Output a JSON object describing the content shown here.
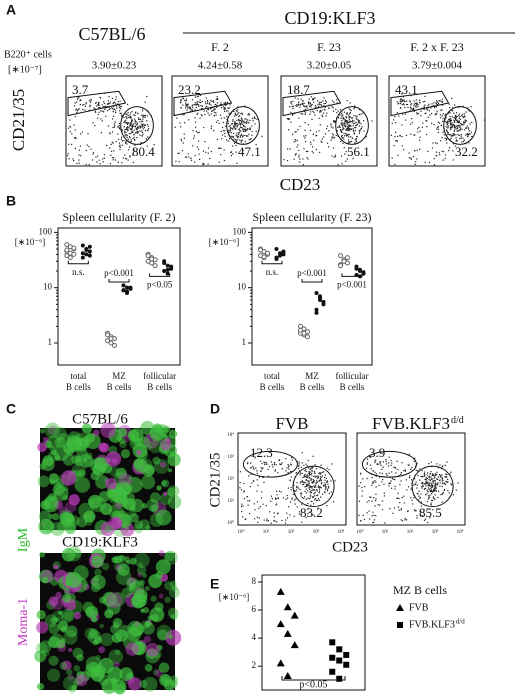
{
  "panel_labels": [
    "A",
    "B",
    "C",
    "D",
    "E"
  ],
  "panel_A": {
    "strain_wt": "C57BL/6",
    "strain_tg": "CD19:KLF3",
    "lines": [
      "F. 2",
      "F. 23",
      "F. 2 x F. 23"
    ],
    "count_label": "B220⁺ cells",
    "count_unit": "[∗10⁻⁷]",
    "counts": [
      "3.90±0.23",
      "4.24±0.58",
      "3.20±0.05",
      "3.79±0.004"
    ],
    "gate_mz": [
      3.7,
      23.2,
      18.7,
      43.1
    ],
    "gate_fo": [
      80.4,
      47.1,
      56.1,
      32.2
    ],
    "y_label": "CD21/35",
    "x_label": "CD23"
  },
  "panel_C": {
    "titles": [
      "C57BL/6",
      "CD19:KLF3"
    ],
    "stain_1": "IgM",
    "stain_2": "Moma-1"
  },
  "panel_D": {
    "titles": [
      "FVB",
      "FVB.KLF3"
    ],
    "title_sup": "d/d",
    "gate_mz": [
      12.3,
      3.9
    ],
    "gate_fo": [
      83.2,
      85.5
    ],
    "y_label": "CD21/35",
    "x_label": "CD23",
    "decades": [
      "10⁰",
      "10¹",
      "10²",
      "10³",
      "10⁴"
    ]
  },
  "chart_data": [
    {
      "type": "strip",
      "title": "Spleen cellularity (F. 2)",
      "y_label": "[∗10⁻⁶]",
      "log_y": true,
      "ylim": [
        0.4,
        120
      ],
      "yticks": [
        1,
        10,
        100
      ],
      "categories": [
        "total B cells",
        "MZ B cells",
        "follicular B cells"
      ],
      "series": [
        {
          "marker": "open-circle",
          "color": "#666666",
          "values": [
            [
              60,
              55,
              50,
              45,
              42,
              40,
              38,
              35,
              52,
              48
            ],
            [
              1.5,
              1.3,
              1.2,
              1.1,
              1.0,
              0.9,
              1.4,
              1.2
            ],
            [
              40,
              35,
              32,
              30,
              28,
              25,
              38,
              33
            ]
          ]
        },
        {
          "marker": "filled-circle",
          "color": "#111111",
          "values": [
            [
              58,
              50,
              45,
              42,
              40,
              38,
              35,
              48,
              55
            ],
            [
              11,
              10,
              9.5,
              9,
              8.5,
              10,
              9,
              8
            ],
            [
              30,
              25,
              22,
              20,
              18,
              24,
              28,
              21
            ]
          ]
        }
      ],
      "annotations": [
        "n.s.",
        "p<0.001",
        "p<0.05"
      ]
    },
    {
      "type": "strip",
      "title": "Spleen cellularity (F. 23)",
      "y_label": "[∗10⁻⁶]",
      "log_y": true,
      "ylim": [
        0.4,
        120
      ],
      "yticks": [
        1,
        10,
        100
      ],
      "categories": [
        "total B cells",
        "MZ B cells",
        "follicular B cells"
      ],
      "series": [
        {
          "marker": "open-circle",
          "color": "#666666",
          "values": [
            [
              50,
              45,
              40,
              38,
              35,
              42,
              48,
              36
            ],
            [
              2.0,
              1.8,
              1.6,
              1.5,
              1.4,
              1.3,
              1.7,
              1.5
            ],
            [
              38,
              32,
              28,
              26,
              30,
              35,
              25
            ]
          ]
        },
        {
          "marker": "filled-circle",
          "color": "#111111",
          "values": [
            [
              50,
              42,
              40,
              35,
              38,
              45,
              33
            ],
            [
              8,
              6,
              5,
              4,
              6.5,
              5.5,
              3.5,
              7
            ],
            [
              22,
              20,
              18,
              17,
              21,
              19,
              24,
              16
            ]
          ]
        }
      ],
      "annotations": [
        "n.s.",
        "p<0.001",
        "p<0.001"
      ]
    },
    {
      "type": "strip",
      "y_label": "[∗10⁻⁶]",
      "ylim": [
        0.3,
        8.5
      ],
      "yticks": [
        2,
        4,
        6,
        8
      ],
      "legend_title": "MZ B cells",
      "series": [
        {
          "name": "FVB",
          "marker": "triangle",
          "color": "#000000",
          "values": [
            7.3,
            6.2,
            5.6,
            5.0,
            4.3,
            3.5,
            2.2,
            1.3
          ]
        },
        {
          "name": "FVB.KLF3",
          "name_sup": "d/d",
          "marker": "square",
          "color": "#000000",
          "values": [
            3.7,
            3.2,
            2.8,
            2.6,
            2.4,
            2.1,
            1.6,
            1.1
          ]
        }
      ],
      "annotations": [
        "p<0.05"
      ]
    }
  ]
}
